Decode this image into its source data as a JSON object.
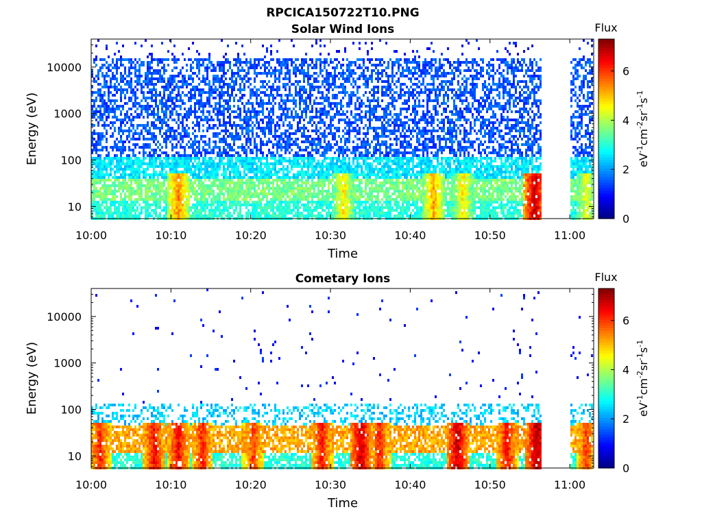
{
  "figure": {
    "title": "RPCICA150722T10.PNG"
  },
  "colorbar": {
    "title": "Flux",
    "range": [
      0,
      7.3
    ],
    "ticks": [
      "0",
      "2",
      "4",
      "6"
    ],
    "tick_values": [
      0,
      2,
      4,
      6
    ],
    "colormap": "jet"
  },
  "chart_data": [
    {
      "type": "heatmap",
      "title": "Solar Wind Ions",
      "xlabel": "Time",
      "ylabel": "Energy (eV)",
      "x_ticks": [
        "10:00",
        "10:10",
        "10:20",
        "10:30",
        "10:40",
        "10:50",
        "11:00"
      ],
      "x_tick_minutes": [
        0,
        10,
        20,
        30,
        40,
        50,
        60
      ],
      "xlim_minutes": [
        0,
        63
      ],
      "y_ticks": [
        "10",
        "100",
        "1000",
        "10000"
      ],
      "y_tick_values": [
        10,
        100,
        1000,
        10000
      ],
      "yscale": "log",
      "ylim": [
        5.5,
        40000
      ],
      "data_gap_minutes": [
        56.6,
        60.0
      ],
      "bands": [
        {
          "e_min": 5.5,
          "e_max": 14,
          "value": 3.0
        },
        {
          "e_min": 14,
          "e_max": 40,
          "value": 3.6
        },
        {
          "e_min": 40,
          "e_max": 110,
          "value": 2.6
        },
        {
          "e_min": 110,
          "e_max": 15000,
          "value": 1.5
        },
        {
          "e_min": 15000,
          "e_max": 40000,
          "value": 1.0
        }
      ],
      "peaks": [
        {
          "minute": 10.8,
          "value": 5.5
        },
        {
          "minute": 31.5,
          "value": 4.8
        },
        {
          "minute": 42.8,
          "value": 5.2
        },
        {
          "minute": 46.5,
          "value": 4.8
        },
        {
          "minute": 55.5,
          "value": 6.8
        },
        {
          "minute": 62.0,
          "value": 4.5
        }
      ]
    },
    {
      "type": "heatmap",
      "title": "Cometary Ions",
      "xlabel": "Time",
      "ylabel": "Energy (eV)",
      "x_ticks": [
        "10:00",
        "10:10",
        "10:20",
        "10:30",
        "10:40",
        "10:50",
        "11:00"
      ],
      "x_tick_minutes": [
        0,
        10,
        20,
        30,
        40,
        50,
        60
      ],
      "xlim_minutes": [
        0,
        63
      ],
      "y_ticks": [
        "10",
        "100",
        "1000",
        "10000"
      ],
      "y_tick_values": [
        10,
        100,
        1000,
        10000
      ],
      "yscale": "log",
      "ylim": [
        5.5,
        40000
      ],
      "data_gap_minutes": [
        56.6,
        60.0
      ],
      "bands": [
        {
          "e_min": 5.5,
          "e_max": 12,
          "value": 3.0
        },
        {
          "e_min": 12,
          "e_max": 45,
          "value": 5.2
        },
        {
          "e_min": 45,
          "e_max": 130,
          "value": 2.4
        },
        {
          "e_min": 130,
          "e_max": 40000,
          "value": 1.0
        }
      ],
      "peaks": [
        {
          "minute": 1.0,
          "value": 6.2
        },
        {
          "minute": 7.8,
          "value": 6.4
        },
        {
          "minute": 10.8,
          "value": 6.5
        },
        {
          "minute": 13.8,
          "value": 6.2
        },
        {
          "minute": 20.2,
          "value": 6.0
        },
        {
          "minute": 28.8,
          "value": 6.3
        },
        {
          "minute": 33.7,
          "value": 6.8
        },
        {
          "minute": 36.0,
          "value": 6.2
        },
        {
          "minute": 45.8,
          "value": 6.8
        },
        {
          "minute": 52.0,
          "value": 6.4
        },
        {
          "minute": 55.8,
          "value": 7.0
        },
        {
          "minute": 62.0,
          "value": 6.0
        }
      ]
    }
  ]
}
